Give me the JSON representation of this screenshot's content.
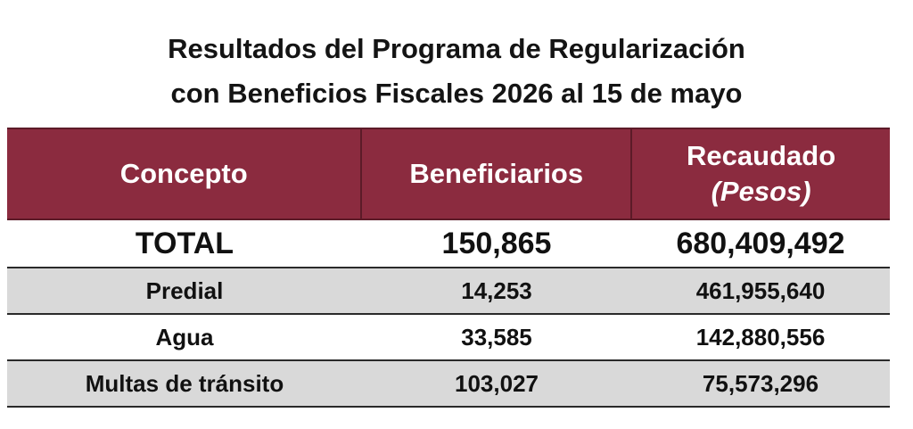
{
  "title": {
    "line1": "Resultados del Programa de Regularización",
    "line2": "con Beneficios Fiscales 2026 al 15 de mayo"
  },
  "table": {
    "headers": {
      "concepto": "Concepto",
      "beneficiarios": "Beneficiarios",
      "recaudado": "Recaudado",
      "recaudado_unit": "(Pesos)"
    },
    "total": {
      "concepto": "TOTAL",
      "beneficiarios": "150,865",
      "recaudado": "680,409,492"
    },
    "rows": [
      {
        "concepto": "Predial",
        "beneficiarios": "14,253",
        "recaudado": "461,955,640"
      },
      {
        "concepto": "Agua",
        "beneficiarios": "33,585",
        "recaudado": "142,880,556"
      },
      {
        "concepto": "Multas de tránsito",
        "beneficiarios": "103,027",
        "recaudado": "75,573,296"
      }
    ]
  },
  "colors": {
    "header_bg": "#8b2b3f",
    "header_text": "#ffffff",
    "shaded_row": "#d9d9d9"
  }
}
